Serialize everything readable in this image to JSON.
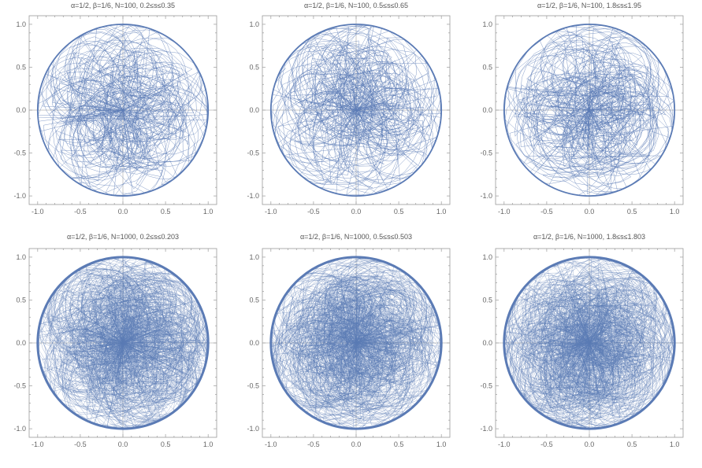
{
  "figure": {
    "description_colors": {
      "curve": "#5b7bb5",
      "frame": "#9a9a9a",
      "axis": "#b4b4b4",
      "tick_text": "#666666",
      "title_text": "#555555"
    }
  },
  "chart_data": [
    {
      "type": "line",
      "title": "α=1/2, β=1/6, N=100, 0.2≤s≤0.35",
      "xlim": [
        -1.1,
        1.1
      ],
      "ylim": [
        -1.1,
        1.1
      ],
      "xticks": [
        "-1.0",
        "-0.5",
        "0.0",
        "0.5",
        "1.0"
      ],
      "yticks": [
        "-1.0",
        "-0.5",
        "0.0",
        "0.5",
        "1.0"
      ],
      "grid": false,
      "axes_through_origin": true,
      "series": [
        {
          "description": "parametric curve filling unit disk",
          "envelope_radius": 1.0,
          "density": "low"
        }
      ]
    },
    {
      "type": "line",
      "title": "α=1/2, β=1/6, N=100, 0.5≤s≤0.65",
      "xlim": [
        -1.1,
        1.1
      ],
      "ylim": [
        -1.1,
        1.1
      ],
      "xticks": [
        "-1.0",
        "-0.5",
        "0.0",
        "0.5",
        "1.0"
      ],
      "yticks": [
        "-1.0",
        "-0.5",
        "0.0",
        "0.5",
        "1.0"
      ],
      "grid": false,
      "axes_through_origin": true,
      "series": [
        {
          "description": "parametric curve filling unit disk",
          "envelope_radius": 1.0,
          "density": "low"
        }
      ]
    },
    {
      "type": "line",
      "title": "α=1/2, β=1/6, N=100, 1.8≤s≤1.95",
      "xlim": [
        -1.1,
        1.1
      ],
      "ylim": [
        -1.1,
        1.1
      ],
      "xticks": [
        "-1.0",
        "-0.5",
        "0.0",
        "0.5",
        "1.0"
      ],
      "yticks": [
        "-1.0",
        "-0.5",
        "0.0",
        "0.5",
        "1.0"
      ],
      "grid": false,
      "axes_through_origin": true,
      "series": [
        {
          "description": "parametric curve filling unit disk",
          "envelope_radius": 1.0,
          "density": "low"
        }
      ]
    },
    {
      "type": "line",
      "title": "α=1/2, β=1/6, N=1000, 0.2≤s≤0.203",
      "xlim": [
        -1.1,
        1.1
      ],
      "ylim": [
        -1.1,
        1.1
      ],
      "xticks": [
        "-1.0",
        "-0.5",
        "0.0",
        "0.5",
        "1.0"
      ],
      "yticks": [
        "-1.0",
        "-0.5",
        "0.0",
        "0.5",
        "1.0"
      ],
      "grid": false,
      "axes_through_origin": true,
      "series": [
        {
          "description": "parametric curve filling unit disk",
          "envelope_radius": 1.0,
          "density": "high"
        }
      ]
    },
    {
      "type": "line",
      "title": "α=1/2, β=1/6, N=1000, 0.5≤s≤0.503",
      "xlim": [
        -1.1,
        1.1
      ],
      "ylim": [
        -1.1,
        1.1
      ],
      "xticks": [
        "-1.0",
        "-0.5",
        "0.0",
        "0.5",
        "1.0"
      ],
      "yticks": [
        "-1.0",
        "-0.5",
        "0.0",
        "0.5",
        "1.0"
      ],
      "grid": false,
      "axes_through_origin": true,
      "series": [
        {
          "description": "parametric curve filling unit disk",
          "envelope_radius": 1.0,
          "density": "high"
        }
      ]
    },
    {
      "type": "line",
      "title": "α=1/2, β=1/6, N=1000, 1.8≤s≤1.803",
      "xlim": [
        -1.1,
        1.1
      ],
      "ylim": [
        -1.1,
        1.1
      ],
      "xticks": [
        "-1.0",
        "-0.5",
        "0.0",
        "0.5",
        "1.0"
      ],
      "yticks": [
        "-1.0",
        "-0.5",
        "0.0",
        "0.5",
        "1.0"
      ],
      "grid": false,
      "axes_through_origin": true,
      "series": [
        {
          "description": "parametric curve filling unit disk",
          "envelope_radius": 1.0,
          "density": "high"
        }
      ]
    }
  ]
}
